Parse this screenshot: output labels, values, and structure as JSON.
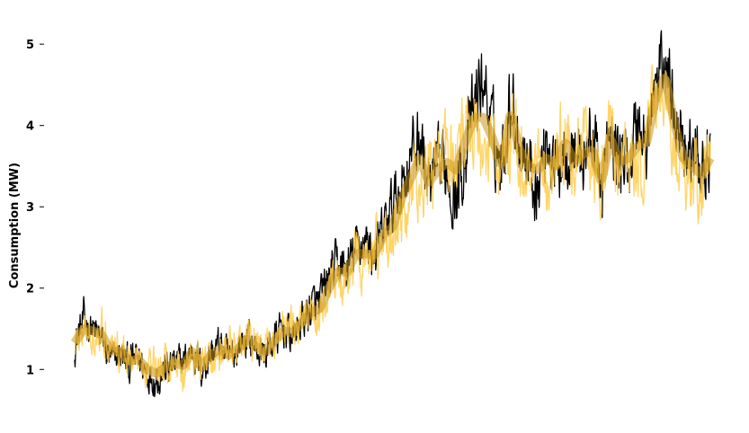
{
  "chart_data": {
    "type": "line",
    "title": "",
    "xlabel": "",
    "ylabel": "Consumption (MW)",
    "ylim": [
      0.55,
      5.3
    ],
    "yticks": [
      1,
      2,
      3,
      4,
      5
    ],
    "ytick_labels": [
      "1",
      "2",
      "3",
      "4",
      "5"
    ],
    "grid": false,
    "legend": "none",
    "x": [
      0,
      1,
      2,
      3,
      4,
      5,
      6,
      7,
      8,
      9,
      10,
      11,
      12,
      13,
      14,
      15,
      16,
      17,
      18,
      19,
      20,
      21,
      22,
      23,
      24,
      25,
      26,
      27,
      28,
      29,
      30,
      31,
      32,
      33,
      34,
      35,
      36,
      37,
      38,
      39,
      40,
      41,
      42,
      43,
      44,
      45,
      46,
      47,
      48,
      49,
      50,
      51,
      52,
      53,
      54,
      55,
      56,
      57,
      58,
      59,
      60,
      61,
      62,
      63,
      64,
      65,
      66,
      67,
      68,
      69,
      70
    ],
    "series": [
      {
        "color": "#000000",
        "values": [
          1.3,
          1.6,
          1.5,
          1.35,
          1.1,
          1.2,
          1.05,
          1.15,
          0.95,
          0.9,
          1.0,
          1.05,
          1.1,
          1.25,
          1.0,
          1.2,
          1.3,
          1.1,
          1.3,
          1.4,
          1.25,
          1.2,
          1.35,
          1.5,
          1.4,
          1.6,
          1.75,
          1.8,
          2.1,
          2.3,
          2.2,
          2.5,
          2.6,
          2.4,
          2.7,
          3.0,
          3.3,
          3.6,
          3.9,
          3.2,
          3.4,
          3.5,
          3.1,
          3.7,
          4.2,
          4.6,
          3.9,
          3.5,
          4.4,
          3.8,
          3.6,
          3.2,
          3.9,
          3.4,
          3.8,
          3.7,
          3.6,
          3.9,
          3.3,
          3.8,
          3.6,
          3.5,
          4.1,
          3.7,
          4.5,
          4.8,
          4.3,
          3.9,
          3.6,
          3.5,
          3.6
        ],
        "band": [
          0.3,
          0.3,
          0.25,
          0.3,
          0.25,
          0.3,
          0.3,
          0.3,
          0.25,
          0.3,
          0.3,
          0.3,
          0.25,
          0.3,
          0.3,
          0.3,
          0.3,
          0.3,
          0.3,
          0.3,
          0.3,
          0.3,
          0.3,
          0.3,
          0.3,
          0.3,
          0.35,
          0.35,
          0.4,
          0.35,
          0.4,
          0.4,
          0.35,
          0.4,
          0.4,
          0.45,
          0.5,
          0.5,
          0.55,
          0.6,
          0.55,
          0.6,
          0.55,
          0.6,
          0.6,
          0.6,
          0.6,
          0.55,
          0.6,
          0.55,
          0.6,
          0.55,
          0.6,
          0.55,
          0.6,
          0.55,
          0.6,
          0.55,
          0.6,
          0.55,
          0.6,
          0.55,
          0.6,
          0.55,
          0.6,
          0.5,
          0.55,
          0.6,
          0.55,
          0.55,
          0.5
        ]
      },
      {
        "color": "#FFCC4D",
        "values": [
          1.35,
          1.4,
          1.45,
          1.5,
          1.35,
          1.25,
          1.15,
          1.1,
          1.05,
          1.0,
          1.05,
          1.1,
          1.0,
          1.2,
          1.05,
          1.15,
          1.2,
          1.25,
          1.2,
          1.35,
          1.3,
          1.25,
          1.35,
          1.45,
          1.5,
          1.55,
          1.65,
          1.7,
          1.9,
          2.1,
          2.2,
          2.35,
          2.25,
          2.4,
          2.6,
          2.5,
          2.9,
          3.1,
          3.3,
          3.4,
          3.5,
          3.6,
          3.8,
          3.9,
          4.0,
          3.6,
          3.8,
          3.5,
          3.9,
          3.6,
          3.4,
          3.7,
          3.3,
          3.6,
          3.8,
          3.4,
          3.7,
          3.5,
          3.3,
          3.9,
          3.5,
          3.7,
          3.4,
          3.9,
          4.2,
          4.4,
          3.8,
          3.3,
          3.4,
          3.3,
          3.6
        ],
        "band": [
          0.3,
          0.3,
          0.3,
          0.3,
          0.3,
          0.3,
          0.3,
          0.25,
          0.3,
          0.3,
          0.3,
          0.3,
          0.3,
          0.3,
          0.3,
          0.3,
          0.3,
          0.3,
          0.3,
          0.3,
          0.3,
          0.3,
          0.3,
          0.3,
          0.35,
          0.3,
          0.35,
          0.35,
          0.35,
          0.4,
          0.4,
          0.4,
          0.4,
          0.45,
          0.45,
          0.5,
          0.5,
          0.55,
          0.5,
          0.55,
          0.6,
          0.6,
          0.6,
          0.6,
          0.6,
          0.6,
          0.6,
          0.6,
          0.6,
          0.6,
          0.6,
          0.55,
          0.6,
          0.6,
          0.6,
          0.55,
          0.6,
          0.6,
          0.55,
          0.6,
          0.6,
          0.55,
          0.6,
          0.6,
          0.55,
          0.6,
          0.6,
          0.55,
          0.6,
          0.55,
          0.5
        ]
      }
    ]
  }
}
